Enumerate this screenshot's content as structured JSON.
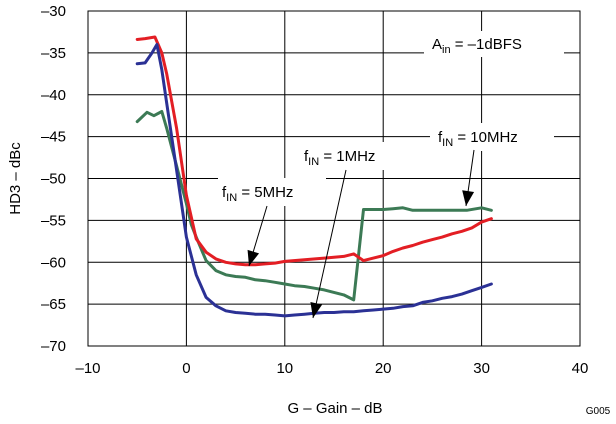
{
  "chart_data": {
    "type": "line",
    "xlabel": "G – Gain – dB",
    "ylabel": "HD3 – dBc",
    "xlim": [
      -10,
      40
    ],
    "ylim": [
      -70,
      -30
    ],
    "x_ticks": [
      -10,
      0,
      10,
      20,
      30,
      40
    ],
    "y_ticks": [
      -30,
      -35,
      -40,
      -45,
      -50,
      -55,
      -60,
      -65,
      -70
    ],
    "x_tick_labels": [
      "–10",
      "0",
      "10",
      "20",
      "30",
      "40"
    ],
    "y_tick_labels": [
      "–30",
      "–35",
      "–40",
      "–45",
      "–50",
      "–55",
      "–60",
      "–65",
      "–70"
    ],
    "grid": true,
    "figure_id": "G005",
    "condition": {
      "main": "A",
      "sub": "in",
      "rest": " = –1dBFS"
    },
    "series": [
      {
        "name": "fIN = 10MHz",
        "label": {
          "main": "f",
          "sub": "IN",
          "rest": " = 10MHz"
        },
        "color": "#3c7a55",
        "points": [
          [
            -5,
            -43.2
          ],
          [
            -4,
            -42.1
          ],
          [
            -3.3,
            -42.5
          ],
          [
            -2.5,
            -42
          ],
          [
            -2,
            -44
          ],
          [
            -1,
            -48.5
          ],
          [
            0,
            -53
          ],
          [
            0.5,
            -55.5
          ],
          [
            1,
            -57
          ],
          [
            2,
            -59.8
          ],
          [
            3,
            -61
          ],
          [
            4,
            -61.5
          ],
          [
            5,
            -61.7
          ],
          [
            6,
            -61.8
          ],
          [
            7,
            -62.1
          ],
          [
            8,
            -62.2
          ],
          [
            9,
            -62.4
          ],
          [
            10,
            -62.6
          ],
          [
            11,
            -62.8
          ],
          [
            12,
            -62.9
          ],
          [
            13,
            -63.1
          ],
          [
            14,
            -63.3
          ],
          [
            15,
            -63.6
          ],
          [
            16,
            -63.9
          ],
          [
            17,
            -64.5
          ],
          [
            18,
            -53.7
          ],
          [
            19,
            -53.7
          ],
          [
            20,
            -53.7
          ],
          [
            21,
            -53.6
          ],
          [
            22,
            -53.5
          ],
          [
            23,
            -53.8
          ],
          [
            25,
            -53.8
          ],
          [
            27,
            -53.8
          ],
          [
            28.5,
            -53.8
          ],
          [
            30,
            -53.5
          ],
          [
            31,
            -53.8
          ]
        ]
      },
      {
        "name": "fIN = 5MHz",
        "label": {
          "main": "f",
          "sub": "IN",
          "rest": " = 5MHz"
        },
        "color": "#e31e24",
        "points": [
          [
            -5,
            -33.4
          ],
          [
            -4.2,
            -33.3
          ],
          [
            -3.2,
            -33.1
          ],
          [
            -2.5,
            -35
          ],
          [
            -2,
            -37.5
          ],
          [
            -1,
            -44
          ],
          [
            0,
            -52
          ],
          [
            1,
            -57.2
          ],
          [
            2,
            -58.8
          ],
          [
            3,
            -59.6
          ],
          [
            4,
            -60
          ],
          [
            5,
            -60.2
          ],
          [
            6,
            -60.3
          ],
          [
            7,
            -60.3
          ],
          [
            8,
            -60.2
          ],
          [
            9,
            -60.1
          ],
          [
            10,
            -59.9
          ],
          [
            12,
            -59.7
          ],
          [
            14,
            -59.5
          ],
          [
            15,
            -59.4
          ],
          [
            16,
            -59.3
          ],
          [
            17,
            -59
          ],
          [
            18,
            -59.8
          ],
          [
            19,
            -59.5
          ],
          [
            20,
            -59.2
          ],
          [
            21,
            -58.7
          ],
          [
            22,
            -58.3
          ],
          [
            23,
            -58
          ],
          [
            24,
            -57.6
          ],
          [
            25,
            -57.3
          ],
          [
            26,
            -57
          ],
          [
            27,
            -56.6
          ],
          [
            28,
            -56.3
          ],
          [
            29,
            -55.9
          ],
          [
            30,
            -55.2
          ],
          [
            31,
            -54.8
          ]
        ]
      },
      {
        "name": "fIN = 1MHz",
        "label": {
          "main": "f",
          "sub": "IN",
          "rest": " = 1MHz"
        },
        "color": "#2b3195",
        "points": [
          [
            -5,
            -36.3
          ],
          [
            -4.2,
            -36.2
          ],
          [
            -3.5,
            -35
          ],
          [
            -3,
            -34
          ],
          [
            -2.5,
            -37
          ],
          [
            -2,
            -41
          ],
          [
            -1,
            -49
          ],
          [
            0,
            -57
          ],
          [
            1,
            -61.5
          ],
          [
            2,
            -64.2
          ],
          [
            3,
            -65.2
          ],
          [
            4,
            -65.8
          ],
          [
            5,
            -66
          ],
          [
            6,
            -66.1
          ],
          [
            7,
            -66.2
          ],
          [
            8,
            -66.2
          ],
          [
            9,
            -66.3
          ],
          [
            10,
            -66.4
          ],
          [
            11,
            -66.3
          ],
          [
            12,
            -66.2
          ],
          [
            13,
            -66.1
          ],
          [
            14,
            -66
          ],
          [
            15,
            -66
          ],
          [
            16,
            -65.9
          ],
          [
            17,
            -65.9
          ],
          [
            18,
            -65.8
          ],
          [
            19,
            -65.7
          ],
          [
            20,
            -65.6
          ],
          [
            21,
            -65.5
          ],
          [
            22,
            -65.3
          ],
          [
            23,
            -65.2
          ],
          [
            24,
            -64.8
          ],
          [
            25,
            -64.6
          ],
          [
            26,
            -64.3
          ],
          [
            27,
            -64.1
          ],
          [
            28,
            -63.8
          ],
          [
            29,
            -63.4
          ],
          [
            30,
            -63
          ],
          [
            31,
            -62.6
          ]
        ]
      }
    ]
  }
}
